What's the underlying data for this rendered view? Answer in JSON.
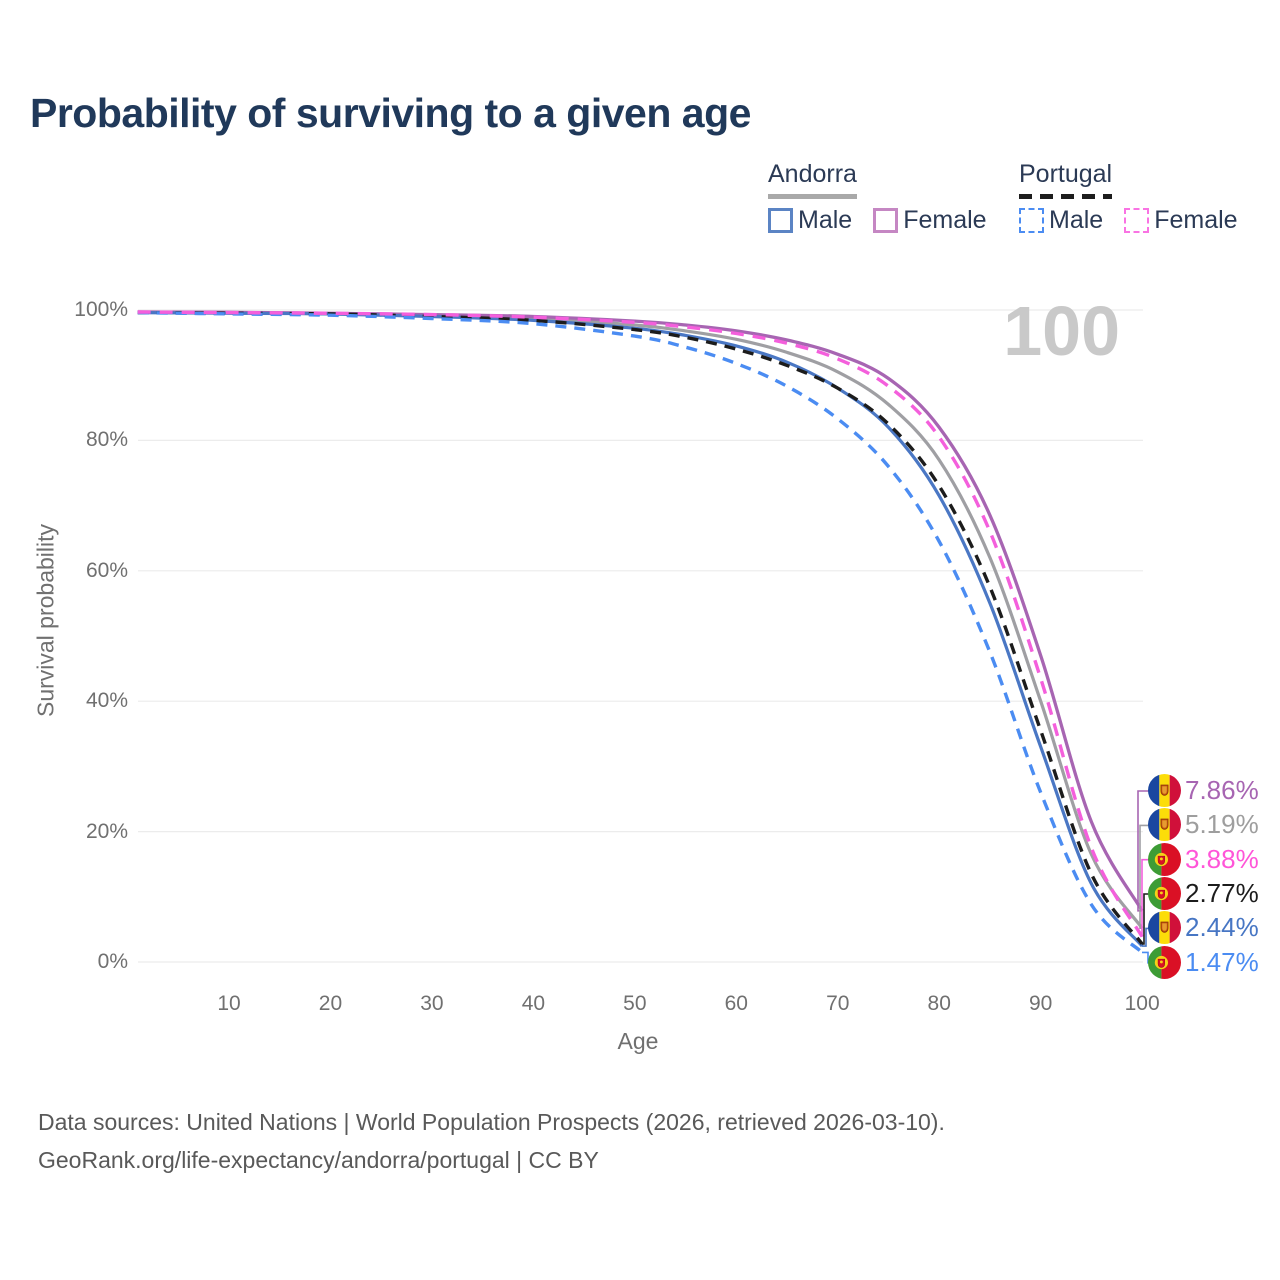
{
  "title": "Probability of surviving to a given age",
  "watermark": "100",
  "legend": {
    "andorra": {
      "title": "Andorra",
      "male": "Male",
      "female": "Female"
    },
    "portugal": {
      "title": "Portugal",
      "male": "Male",
      "female": "Female"
    },
    "andorra_underline_color": "#a9a9a9",
    "portugal_underline_color": "#1d1d1d",
    "swatch_colors": {
      "andorra_male": "#5b84c4",
      "andorra_female": "#c587c3",
      "portugal_male": "#4b8cf2",
      "portugal_female": "#f973e3"
    }
  },
  "chart_data": {
    "type": "line",
    "title": "Probability of surviving to a given age",
    "xlabel": "Age",
    "ylabel": "Survival probability",
    "xlim": [
      1,
      100
    ],
    "ylim": [
      0,
      100
    ],
    "grid": "horizontal-only",
    "legend_position": "top-right",
    "annotation": "100",
    "x_ticks": [
      10,
      20,
      30,
      40,
      50,
      60,
      70,
      80,
      90,
      100
    ],
    "y_tick_labels": [
      "0%",
      "20%",
      "40%",
      "60%",
      "80%",
      "100%"
    ],
    "y_gridlines": [
      0,
      20,
      40,
      60,
      80,
      100
    ],
    "x": [
      1,
      10,
      20,
      30,
      40,
      50,
      55,
      60,
      65,
      70,
      75,
      80,
      85,
      90,
      95,
      100
    ],
    "series": [
      {
        "name": "Andorra Total",
        "country": "andorra",
        "style": "solid",
        "color": "#9f9fa3",
        "width": 3.2,
        "dash": "",
        "values": [
          99.7,
          99.6,
          99.4,
          99.1,
          98.7,
          97.7,
          96.8,
          95.5,
          93.5,
          90.5,
          85.5,
          77.0,
          62.0,
          40.0,
          16.5,
          5.19
        ],
        "end_label": "5.19%",
        "end_label_color": "#9e9e9e"
      },
      {
        "name": "Andorra Female",
        "country": "andorra",
        "style": "solid",
        "color": "#a765b2",
        "width": 3.3,
        "dash": "",
        "values": [
          99.7,
          99.65,
          99.5,
          99.3,
          99.0,
          98.3,
          97.7,
          96.8,
          95.4,
          93.2,
          89.5,
          82.0,
          68.5,
          47.0,
          21.5,
          7.86
        ],
        "end_label": "7.86%",
        "end_label_color": "#a765b2"
      },
      {
        "name": "Andorra Male",
        "country": "andorra",
        "style": "solid",
        "color": "#4a77c4",
        "width": 3.2,
        "dash": "",
        "values": [
          99.6,
          99.5,
          99.4,
          99.0,
          98.4,
          97.2,
          96.1,
          94.5,
          92.0,
          88.0,
          82.0,
          71.5,
          55.0,
          33.0,
          12.0,
          2.44
        ],
        "end_label": "2.44%",
        "end_label_color": "#4776c4"
      },
      {
        "name": "Portugal Total",
        "country": "portugal",
        "style": "dashed",
        "color": "#1c1c1c",
        "width": 3.4,
        "dash": "11 8",
        "values": [
          99.6,
          99.5,
          99.4,
          99.0,
          98.4,
          97.0,
          95.8,
          94.0,
          91.5,
          88.0,
          82.5,
          73.0,
          57.5,
          35.5,
          13.5,
          2.77
        ],
        "end_label": "2.77%",
        "end_label_color": "#1c1c1c"
      },
      {
        "name": "Portugal Male",
        "country": "portugal",
        "style": "dashed",
        "color": "#4b8cf2",
        "width": 3.4,
        "dash": "11 8",
        "values": [
          99.6,
          99.4,
          99.2,
          98.7,
          97.9,
          96.0,
          94.3,
          91.8,
          88.3,
          83.3,
          76.0,
          64.5,
          47.5,
          26.0,
          8.8,
          1.47
        ],
        "end_label": "1.47%",
        "end_label_color": "#4b8cf2"
      },
      {
        "name": "Portugal Female",
        "country": "portugal",
        "style": "dashed",
        "color": "#f45fdc",
        "width": 3.4,
        "dash": "13 9",
        "values": [
          99.7,
          99.6,
          99.5,
          99.3,
          98.9,
          98.1,
          97.4,
          96.4,
          94.9,
          92.5,
          88.3,
          80.5,
          66.0,
          43.5,
          17.5,
          3.88
        ],
        "end_label": "3.88%",
        "end_label_color": "#ff55d8"
      }
    ]
  },
  "footer": {
    "line1": "Data sources: United Nations | World Population Prospects (2026, retrieved 2026-03-10).",
    "line2": "GeoRank.org/life-expectancy/andorra/portugal | CC BY"
  }
}
